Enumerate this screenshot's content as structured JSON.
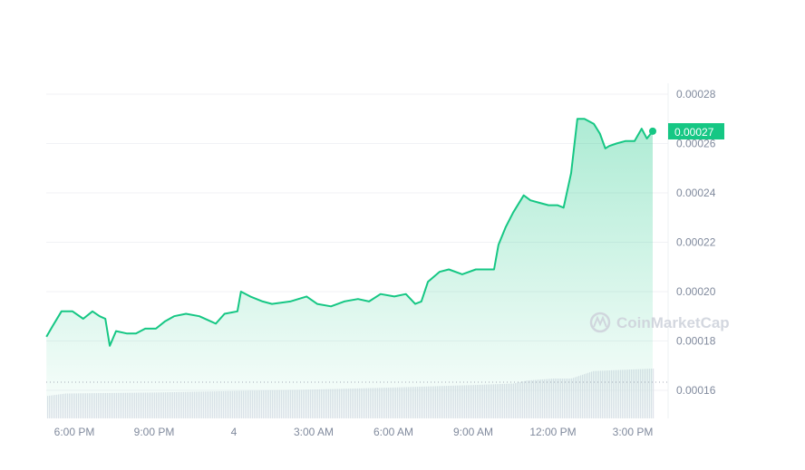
{
  "chart_data": {
    "type": "area",
    "title": "",
    "xlabel": "",
    "ylabel": "",
    "ylim": [
      0.000148,
      0.000289
    ],
    "y_ticks": [
      "0.00016",
      "0.00018",
      "0.00020",
      "0.00022",
      "0.00024",
      "0.00026",
      "0.00028"
    ],
    "x_ticks": [
      {
        "time": "18:00",
        "label": "6:00 PM"
      },
      {
        "time": "21:00",
        "label": "9:00 PM"
      },
      {
        "time": "00:00",
        "label": "4"
      },
      {
        "time": "03:00",
        "label": "3:00 AM"
      },
      {
        "time": "06:00",
        "label": "6:00 AM"
      },
      {
        "time": "09:00",
        "label": "9:00 AM"
      },
      {
        "time": "12:00",
        "label": "12:00 PM"
      },
      {
        "time": "15:00",
        "label": "3:00 PM"
      }
    ],
    "grid": true,
    "y_axis_position": "right",
    "current_price_label": "0.00027",
    "watermark": "CoinMarketCap",
    "colors": {
      "line": "#16c784",
      "area_top": "#16c784",
      "label_bg": "#16c784",
      "volume": "#dfe2ea",
      "grid": "#f1f2f5",
      "text": "#808a9d"
    },
    "series": [
      {
        "x": [
          "16:57",
          "17:11",
          "17:31",
          "17:56",
          "18:20",
          "18:41",
          "18:57",
          "19:10",
          "19:20",
          "19:34",
          "19:59",
          "20:19",
          "20:40",
          "21:04",
          "21:25",
          "21:45",
          "22:12",
          "22:42",
          "23:07",
          "23:19",
          "23:39",
          "00:08",
          "00:16",
          "00:37",
          "01:05",
          "01:26",
          "02:07",
          "02:44",
          "03:08",
          "03:39",
          "04:09",
          "04:40",
          "05:05",
          "05:31",
          "06:02",
          "06:28",
          "06:49",
          "07:03",
          "07:18",
          "07:44",
          "08:05",
          "08:35",
          "09:06",
          "09:47",
          "09:57",
          "10:13",
          "10:30",
          "10:54",
          "11:09",
          "11:29",
          "11:50",
          "12:10",
          "12:24",
          "12:41",
          "12:55",
          "13:11",
          "13:32",
          "13:46",
          "13:58",
          "14:07",
          "14:23",
          "14:43",
          "15:04",
          "15:20",
          "15:32",
          "15:45"
        ],
        "values": [
          0.0001817,
          0.000186,
          0.000192,
          0.000192,
          0.000189,
          0.000192,
          0.00019,
          0.000189,
          0.000178,
          0.000184,
          0.000183,
          0.000183,
          0.000185,
          0.000185,
          0.000188,
          0.00019,
          0.000191,
          0.00019,
          0.000188,
          0.000187,
          0.000191,
          0.000192,
          0.0002,
          0.000198,
          0.000196,
          0.000195,
          0.000196,
          0.000198,
          0.000195,
          0.000194,
          0.000196,
          0.000197,
          0.000196,
          0.000199,
          0.000198,
          0.000199,
          0.000195,
          0.000196,
          0.000204,
          0.000208,
          0.000209,
          0.000207,
          0.000209,
          0.000209,
          0.000219,
          0.000226,
          0.000232,
          0.000239,
          0.000237,
          0.000236,
          0.000235,
          0.000235,
          0.000234,
          0.000248,
          0.00027,
          0.00027,
          0.000268,
          0.000264,
          0.000258,
          0.000259,
          0.00026,
          0.000261,
          0.000261,
          0.000266,
          0.000262,
          0.000265
        ]
      }
    ],
    "volume_relative": {
      "x": [
        "16:57",
        "17:40",
        "21:00",
        "00:00",
        "03:00",
        "06:00",
        "09:00",
        "10:30",
        "11:00",
        "12:00",
        "12:40",
        "13:30",
        "15:45"
      ],
      "values": [
        0.45,
        0.5,
        0.52,
        0.55,
        0.58,
        0.62,
        0.67,
        0.7,
        0.76,
        0.8,
        0.8,
        0.95,
        1.0
      ]
    }
  }
}
